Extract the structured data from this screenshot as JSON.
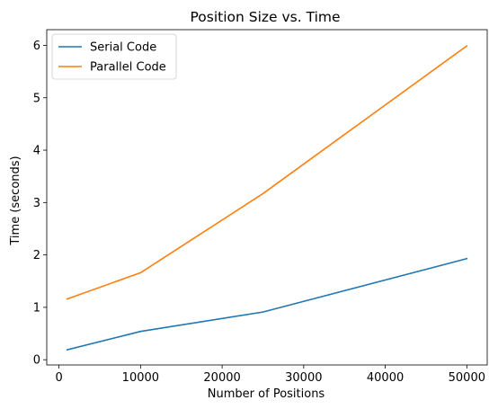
{
  "chart_data": {
    "type": "line",
    "title": "Position Size vs. Time",
    "xlabel": "Number of Positions",
    "ylabel": "Time (seconds)",
    "xlim": [
      -1500,
      52500
    ],
    "ylim": [
      -0.1,
      6.3
    ],
    "xticks": [
      0,
      10000,
      20000,
      30000,
      40000,
      50000
    ],
    "yticks": [
      0,
      1,
      2,
      3,
      4,
      5,
      6
    ],
    "grid": false,
    "legend_position": "top-left",
    "x": [
      1000,
      10000,
      25000,
      50000
    ],
    "series": [
      {
        "name": "Serial Code",
        "color": "#1f77b4",
        "values": [
          0.19,
          0.54,
          0.91,
          1.93
        ]
      },
      {
        "name": "Parallel Code",
        "color": "#ff7f0e",
        "values": [
          1.16,
          1.66,
          3.17,
          5.99
        ]
      }
    ]
  }
}
